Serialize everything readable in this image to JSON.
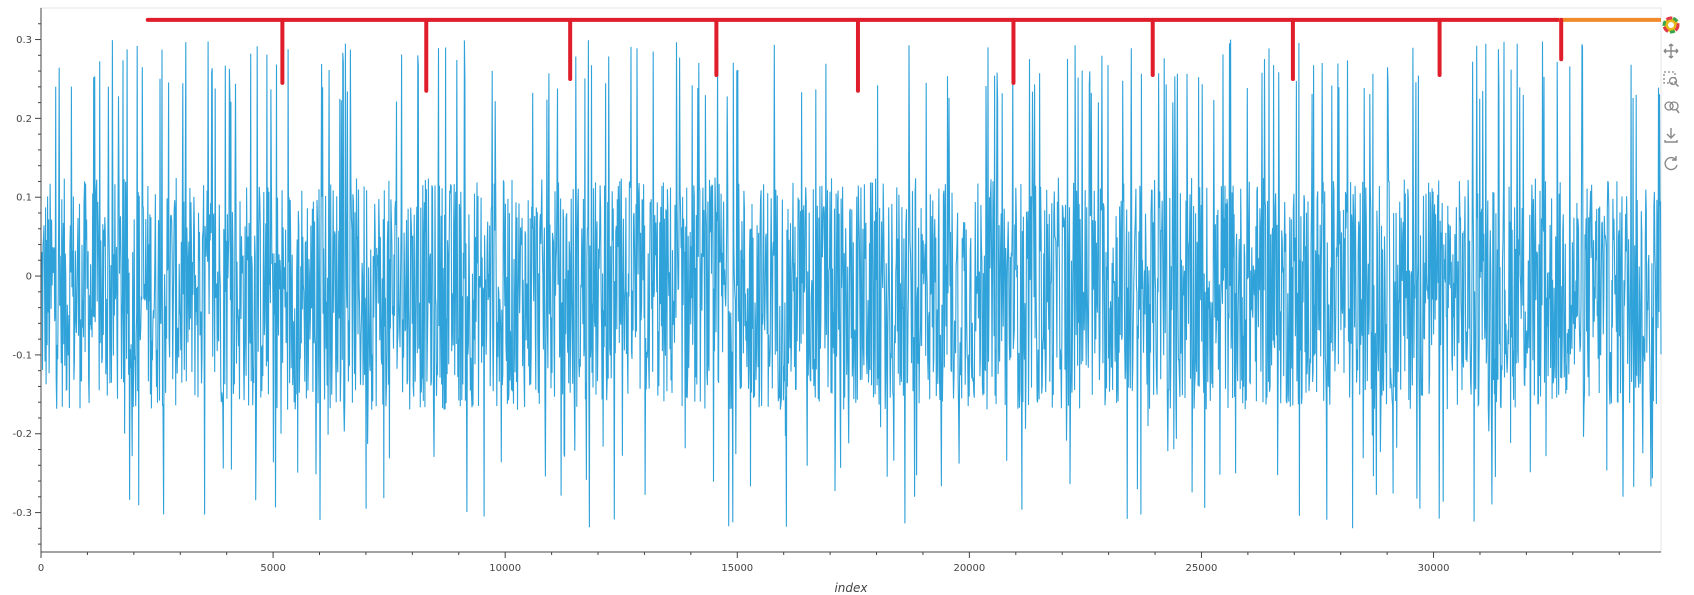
{
  "chart_data": {
    "type": "line",
    "title": "",
    "xlabel": "index",
    "ylabel": "",
    "xlim": [
      0,
      34900
    ],
    "ylim": [
      -0.35,
      0.34
    ],
    "grid": false,
    "x_ticks": [
      0,
      5000,
      10000,
      15000,
      20000,
      25000,
      30000
    ],
    "x_tick_labels": [
      "0",
      "5000",
      "10000",
      "15000",
      "20000",
      "25000",
      "30000"
    ],
    "y_ticks": [
      0.3,
      0.2,
      0.1,
      0,
      -0.1,
      -0.2,
      -0.3
    ],
    "y_tick_labels": [
      "0.3",
      "0.2",
      "0.1",
      "0",
      "-0.1",
      "-0.2",
      "-0.3"
    ],
    "series": [
      {
        "color": "#30a2da",
        "n_points": 34900,
        "band_range": [
          -0.17,
          0.125
        ],
        "peak_range": [
          -0.32,
          0.3
        ]
      }
    ],
    "annotations": {
      "line_color": "#e01e2b",
      "segment_color": "#f08a2a",
      "horizontal_line": {
        "y": 0.325,
        "x_start": 2300,
        "x_end": 32700
      },
      "end_segment": {
        "y": 0.325,
        "x_start": 32700,
        "x_end": 34900
      },
      "drops": [
        {
          "x": 5200,
          "y_end": 0.245
        },
        {
          "x": 8300,
          "y_end": 0.235
        },
        {
          "x": 11400,
          "y_end": 0.25
        },
        {
          "x": 14550,
          "y_end": 0.255
        },
        {
          "x": 17600,
          "y_end": 0.235
        },
        {
          "x": 20950,
          "y_end": 0.245
        },
        {
          "x": 23950,
          "y_end": 0.255
        },
        {
          "x": 26970,
          "y_end": 0.25
        },
        {
          "x": 30130,
          "y_end": 0.255
        },
        {
          "x": 32750,
          "y_end": 0.275
        }
      ]
    }
  },
  "toolbar": {
    "items": [
      {
        "name": "bokeh-logo-icon",
        "icon": "logo"
      },
      {
        "name": "pan-icon",
        "icon": "pan"
      },
      {
        "name": "box-zoom-icon",
        "icon": "box-zoom"
      },
      {
        "name": "wheel-zoom-icon",
        "icon": "wheel-zoom"
      },
      {
        "name": "save-icon",
        "icon": "save"
      },
      {
        "name": "reset-icon",
        "icon": "reset"
      }
    ]
  }
}
